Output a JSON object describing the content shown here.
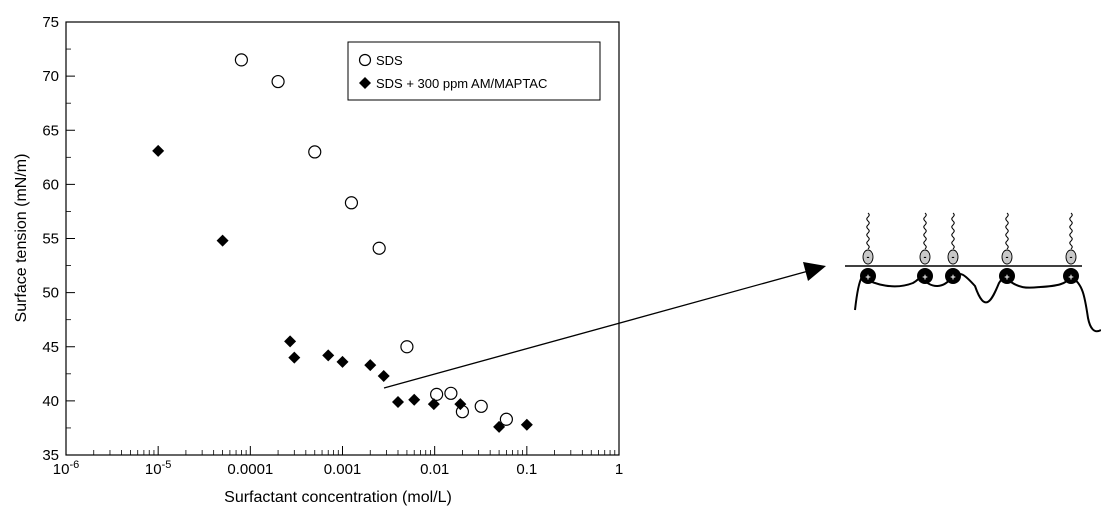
{
  "chart_data": {
    "type": "scatter",
    "xlabel": "Surfactant concentration (mol/L)",
    "ylabel": "Surface tension (mN/m)",
    "xscale": "log",
    "xlim": [
      1e-06,
      1
    ],
    "ylim": [
      35,
      75
    ],
    "x_ticks": [
      {
        "value": 1e-06,
        "base": "10",
        "exp": "-6"
      },
      {
        "value": 1e-05,
        "base": "10",
        "exp": "-5"
      },
      {
        "value": 0.0001,
        "label": "0.0001"
      },
      {
        "value": 0.001,
        "label": "0.001"
      },
      {
        "value": 0.01,
        "label": "0.01"
      },
      {
        "value": 0.1,
        "label": "0.1"
      },
      {
        "value": 1,
        "label": "1"
      }
    ],
    "y_ticks": [
      35,
      40,
      45,
      50,
      55,
      60,
      65,
      70,
      75
    ],
    "legend_position": "top-right",
    "grid": false,
    "series": [
      {
        "name": "SDS",
        "marker": "open-circle",
        "color": "#000000",
        "points": [
          [
            8e-05,
            71.5
          ],
          [
            0.0002,
            69.5
          ],
          [
            0.0005,
            63.0
          ],
          [
            0.00125,
            58.3
          ],
          [
            0.0025,
            54.1
          ],
          [
            0.005,
            45.0
          ],
          [
            0.0105,
            40.6
          ],
          [
            0.015,
            40.7
          ],
          [
            0.02,
            39.0
          ],
          [
            0.032,
            39.5
          ],
          [
            0.06,
            38.3
          ]
        ]
      },
      {
        "name": "SDS + 300 ppm AM/MAPTAC",
        "marker": "filled-diamond",
        "color": "#000000",
        "points": [
          [
            1e-05,
            63.1
          ],
          [
            5e-05,
            54.8
          ],
          [
            0.00027,
            45.5
          ],
          [
            0.0003,
            44.0
          ],
          [
            0.0007,
            44.2
          ],
          [
            0.001,
            43.6
          ],
          [
            0.002,
            43.3
          ],
          [
            0.0028,
            42.3
          ],
          [
            0.004,
            39.9
          ],
          [
            0.006,
            40.1
          ],
          [
            0.0098,
            39.7
          ],
          [
            0.019,
            39.7
          ],
          [
            0.05,
            37.6
          ],
          [
            0.1,
            37.8
          ]
        ]
      }
    ]
  },
  "inset": {
    "description_free": true,
    "headgroup_sign": "-",
    "polymer_sign": "+",
    "headgroup_color": "#c8c8c8",
    "polymer_charge_color": "#000000",
    "molecule_count": 5
  }
}
